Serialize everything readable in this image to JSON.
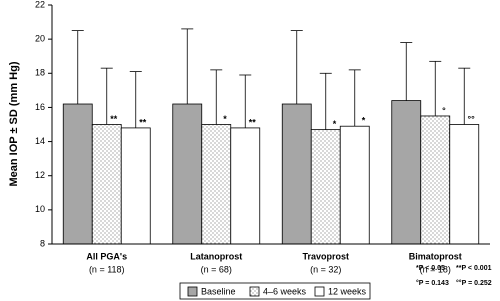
{
  "chart_data": {
    "type": "bar",
    "y_label": "Mean IOP ± SD (mm Hg)",
    "categories": [
      "All PGA's",
      "Latanoprost",
      "Travoprost",
      "Bimatoprost"
    ],
    "category_notes": [
      "(n = 118)",
      "(n = 68)",
      "(n = 32)",
      "(n = 18)"
    ],
    "series": [
      {
        "name": "Baseline",
        "color": "#a6a6a6",
        "values": [
          16.2,
          16.2,
          16.2,
          16.4
        ],
        "errors": [
          4.3,
          4.4,
          4.3,
          3.4
        ]
      },
      {
        "name": "4–6 weeks",
        "color": "#ffffff",
        "pattern": "dots",
        "values": [
          15.0,
          15.0,
          14.7,
          15.5
        ],
        "errors": [
          3.3,
          3.2,
          3.3,
          3.2
        ],
        "significance": [
          "**",
          "*",
          "*",
          "°"
        ]
      },
      {
        "name": "12 weeks",
        "color": "#ffffff",
        "values": [
          14.8,
          14.8,
          14.9,
          15.0
        ],
        "errors": [
          3.3,
          3.1,
          3.3,
          3.3
        ],
        "significance": [
          "**",
          "**",
          "*",
          "°°"
        ]
      }
    ],
    "ylim": [
      8,
      22
    ],
    "yticks": [
      8,
      10,
      12,
      14,
      16,
      18,
      20,
      22
    ],
    "footnotes": [
      "*P < 0.05",
      "**P < 0.001",
      "°P = 0.143",
      "°°P = 0.252"
    ],
    "legend": "bottom"
  }
}
